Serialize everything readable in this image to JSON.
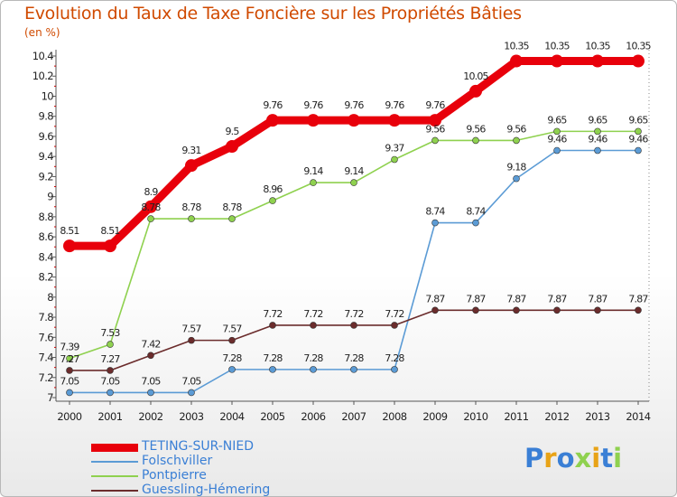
{
  "chart_data": {
    "type": "line",
    "title": "Evolution du Taux de Taxe Foncière sur les Propriétés Bâties",
    "ylabel": "(en %)",
    "xlabel": "",
    "x": [
      "2000",
      "2001",
      "2002",
      "2003",
      "2004",
      "2005",
      "2006",
      "2007",
      "2008",
      "2009",
      "2010",
      "2011",
      "2012",
      "2013",
      "2014"
    ],
    "ylim": [
      7,
      10.4
    ],
    "yticks": [
      "7",
      "7.2",
      "7.4",
      "7.6",
      "7.8",
      "8",
      "8.2",
      "8.4",
      "8.6",
      "8.8",
      "9",
      "9.2",
      "9.4",
      "9.6",
      "9.8",
      "10",
      "10.2",
      "10.4"
    ],
    "grid": false,
    "legend_position": "bottom-left",
    "series": [
      {
        "name": "TETING-SUR-NIED",
        "color": "#e8000b",
        "values": [
          8.51,
          8.51,
          8.9,
          9.31,
          9.5,
          9.76,
          9.76,
          9.76,
          9.76,
          9.76,
          10.05,
          10.35,
          10.35,
          10.35,
          10.35
        ],
        "labels": [
          "8.51",
          "8.51",
          "8.9",
          "9.31",
          "9.5",
          "9.76",
          "9.76",
          "9.76",
          "9.76",
          "9.76",
          "10.05",
          "10.35",
          "10.35",
          "10.35",
          "10.35"
        ]
      },
      {
        "name": "Folschviller",
        "color": "#5b9bd5",
        "values": [
          7.05,
          7.05,
          7.05,
          7.05,
          7.28,
          7.28,
          7.28,
          7.28,
          7.28,
          8.74,
          8.74,
          9.18,
          9.46,
          9.46,
          9.46
        ],
        "labels": [
          "7.05",
          "7.05",
          "7.05",
          "7.05",
          "7.28",
          "7.28",
          "7.28",
          "7.28",
          "7.28",
          "8.74",
          "8.74",
          "9.18",
          "9.46",
          "9.46",
          "9.46"
        ]
      },
      {
        "name": "Pontpierre",
        "color": "#8fd14f",
        "values": [
          7.39,
          7.53,
          8.78,
          8.78,
          8.78,
          8.96,
          9.14,
          9.14,
          9.37,
          9.56,
          9.56,
          9.56,
          9.65,
          9.65,
          9.65
        ],
        "labels": [
          "7.39",
          "7.53",
          "8.78",
          "8.78",
          "8.78",
          "8.96",
          "9.14",
          "9.14",
          "9.37",
          "9.56",
          "9.56",
          "9.56",
          "9.65",
          "9.65",
          "9.65"
        ]
      },
      {
        "name": "Guessling-Hémering",
        "color": "#6b2c2c",
        "values": [
          7.27,
          7.27,
          7.42,
          7.57,
          7.57,
          7.72,
          7.72,
          7.72,
          7.72,
          7.87,
          7.87,
          7.87,
          7.87,
          7.87,
          7.87
        ],
        "labels": [
          "7.27",
          "7.27",
          "7.42",
          "7.57",
          "7.57",
          "7.72",
          "7.72",
          "7.72",
          "7.72",
          "7.87",
          "7.87",
          "7.87",
          "7.87",
          "7.87",
          "7.87"
        ]
      }
    ]
  },
  "brand": {
    "letters": [
      "P",
      "r",
      "o",
      "x",
      "i",
      "t",
      "i"
    ],
    "colors": [
      "#3a7fd5",
      "#e8a317",
      "#3a7fd5",
      "#8fd14f",
      "#e8a317",
      "#3a7fd5",
      "#8fd14f"
    ]
  }
}
